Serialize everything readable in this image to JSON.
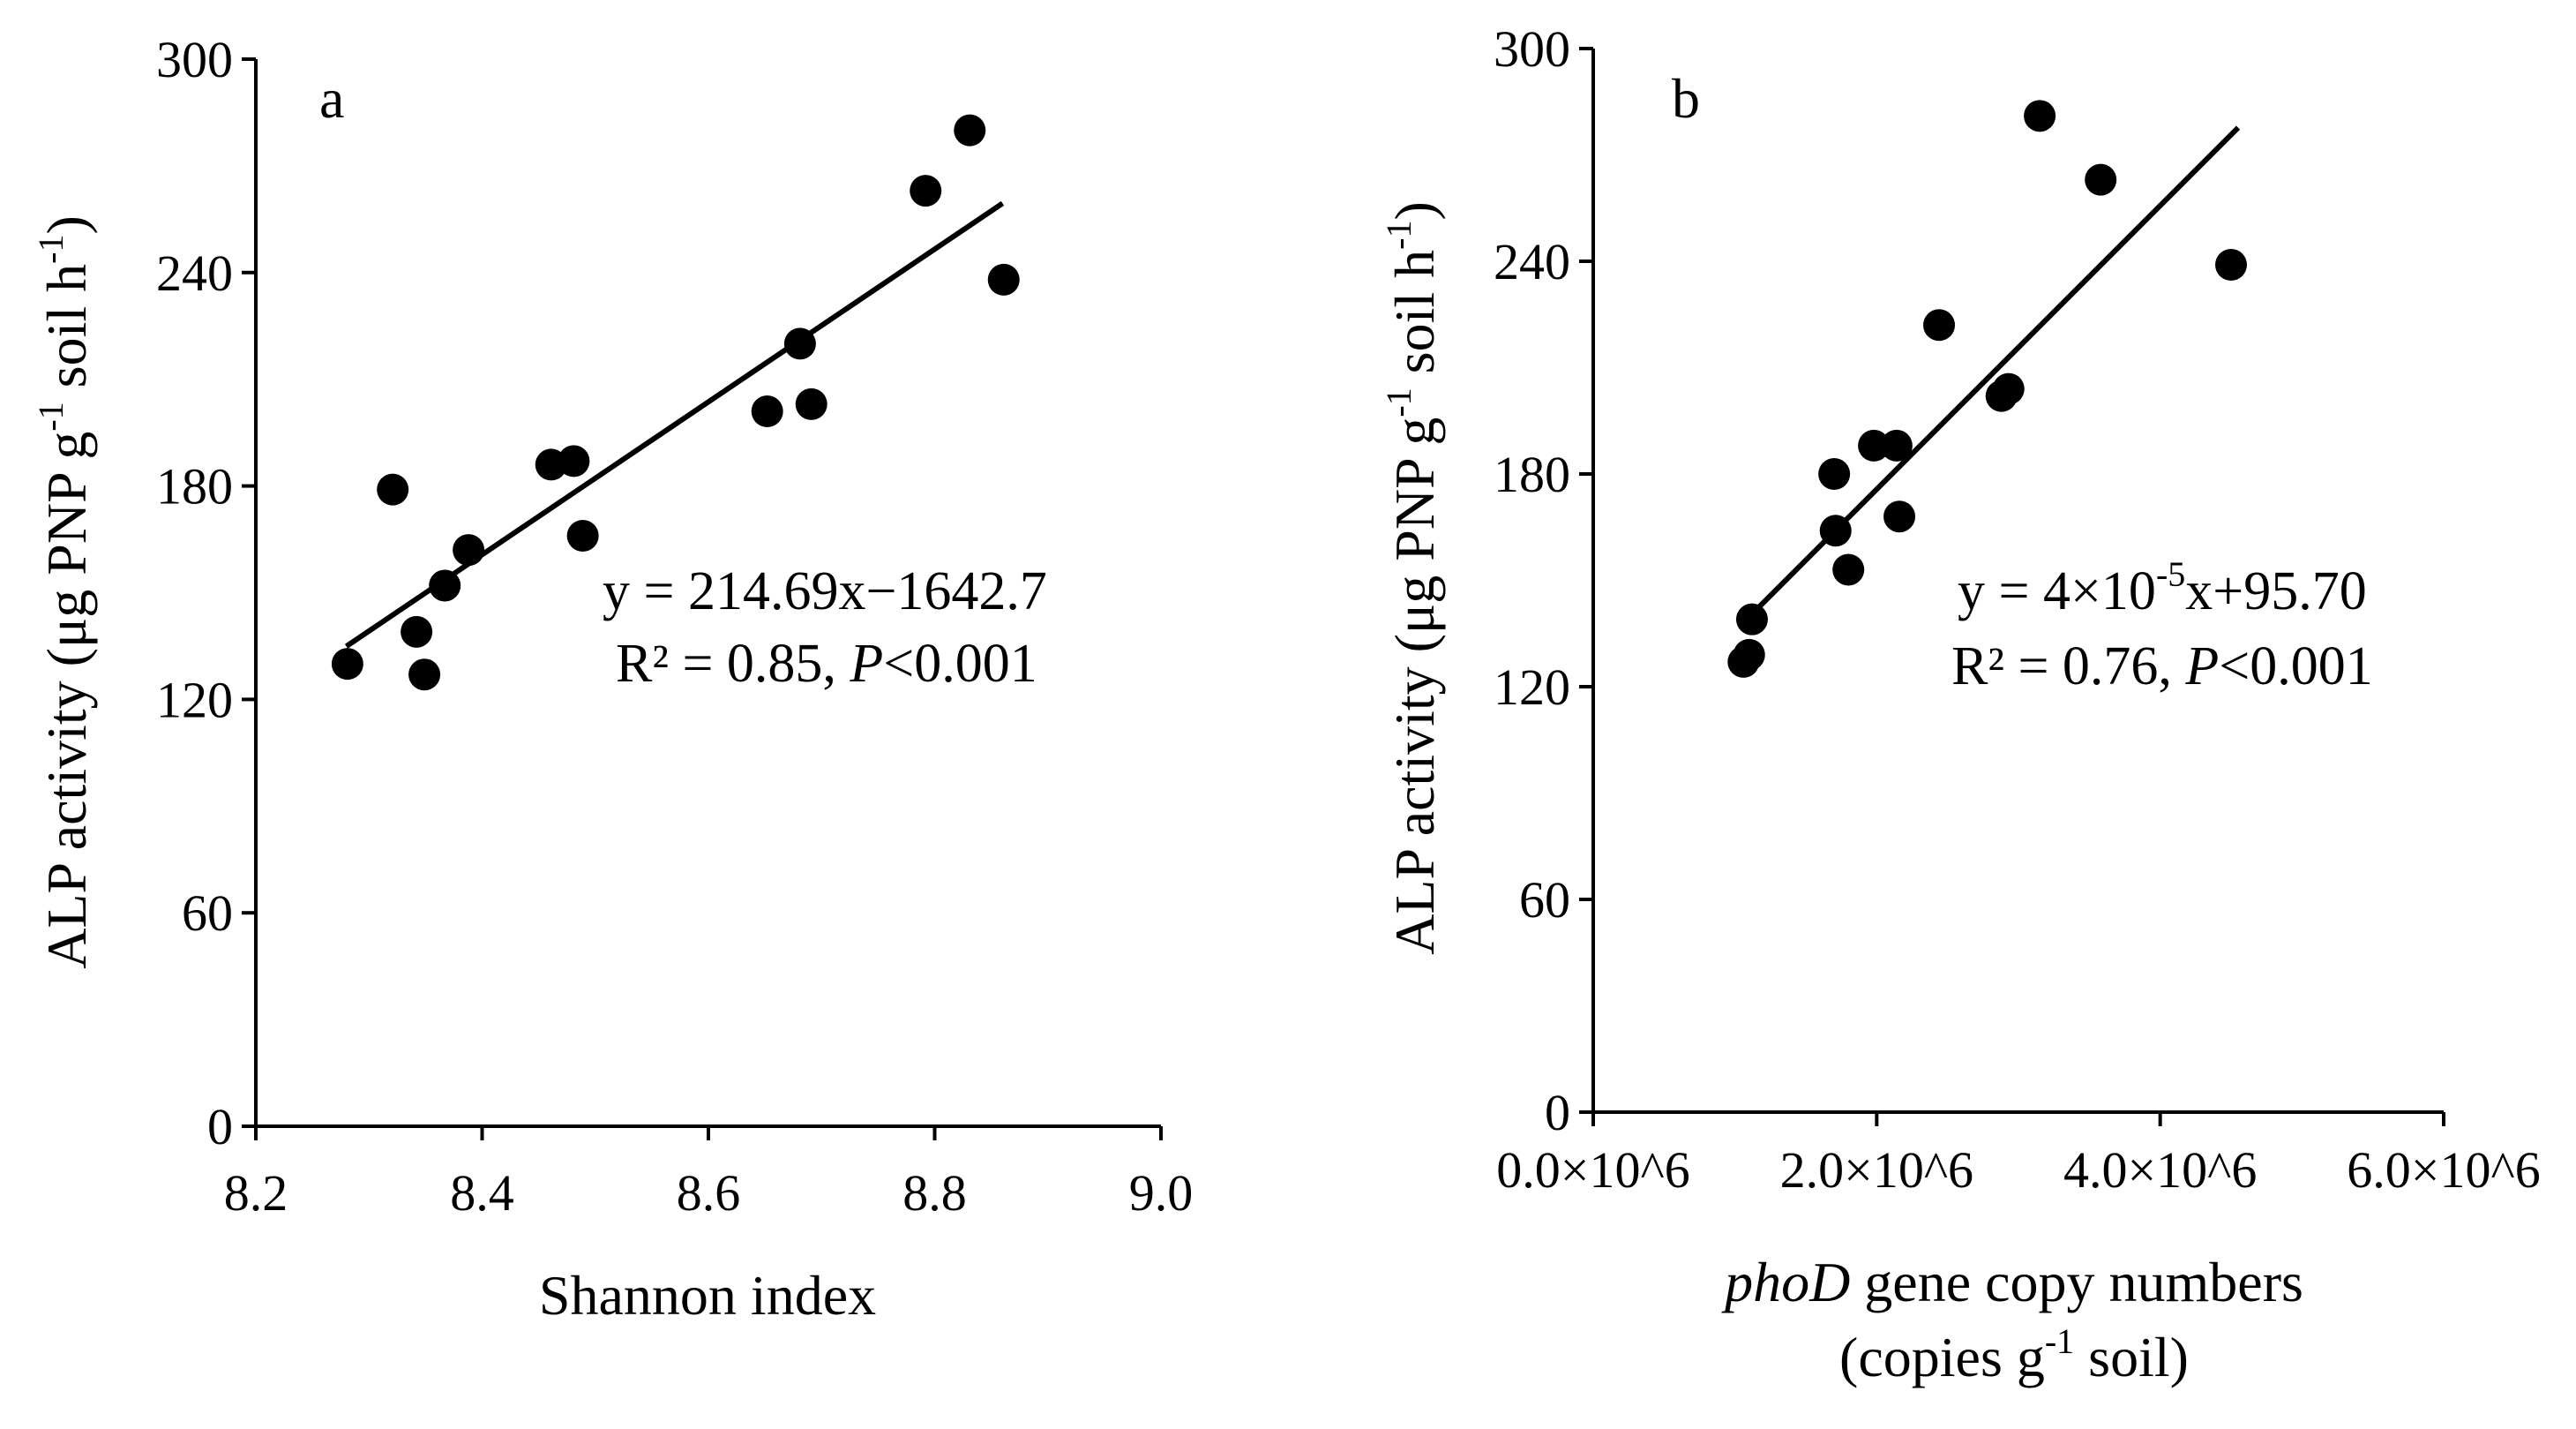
{
  "chart_data": [
    {
      "type": "scatter",
      "panel_label": "a",
      "xlabel": "Shannon index",
      "ylabel": {
        "prefix": "ALP activity (μg PNP g",
        "sup1": "-1",
        "middle": " soil h",
        "sup2": "-1",
        "suffix": ")"
      },
      "xlim": [
        8.2,
        9.0
      ],
      "ylim": [
        0,
        300
      ],
      "xticks": [
        8.2,
        8.4,
        8.6,
        8.8,
        9.0
      ],
      "xtick_labels": [
        "8.2",
        "8.4",
        "8.6",
        "8.8",
        "9.0"
      ],
      "yticks": [
        0,
        60,
        120,
        180,
        240,
        300
      ],
      "ytick_labels": [
        "0",
        "60",
        "120",
        "180",
        "240",
        "300"
      ],
      "points": [
        {
          "x": 8.281,
          "y": 130
        },
        {
          "x": 8.321,
          "y": 179
        },
        {
          "x": 8.342,
          "y": 139
        },
        {
          "x": 8.349,
          "y": 127
        },
        {
          "x": 8.367,
          "y": 152
        },
        {
          "x": 8.388,
          "y": 162
        },
        {
          "x": 8.461,
          "y": 186
        },
        {
          "x": 8.481,
          "y": 187
        },
        {
          "x": 8.489,
          "y": 166
        },
        {
          "x": 8.652,
          "y": 201
        },
        {
          "x": 8.681,
          "y": 220
        },
        {
          "x": 8.691,
          "y": 203
        },
        {
          "x": 8.792,
          "y": 263
        },
        {
          "x": 8.831,
          "y": 280
        },
        {
          "x": 8.861,
          "y": 238
        }
      ],
      "fit": {
        "slope": 214.69,
        "intercept": -1642.7,
        "x_range": [
          8.28,
          8.86
        ]
      },
      "equation": "y = 214.69x−1642.7",
      "r2_text": "R² = 0.85, ",
      "p_label": "P",
      "p_value": "<0.001"
    },
    {
      "type": "scatter",
      "panel_label": "b",
      "xlabel": {
        "italic": "phoD",
        "rest": " gene copy numbers"
      },
      "xlabel2": {
        "prefix": "(copies g",
        "sup": "-1",
        "suffix": " soil)"
      },
      "ylabel": {
        "prefix": "ALP activity (μg PNP g",
        "sup1": "-1",
        "middle": " soil h",
        "sup2": "-1",
        "suffix": ")"
      },
      "xlim": [
        0,
        6000000
      ],
      "ylim": [
        0,
        300
      ],
      "xticks": [
        0,
        2000000,
        4000000,
        6000000
      ],
      "xtick_labels": [
        "0.0×10^6",
        "2.0×10^6",
        "4.0×10^6",
        "6.0×10^6"
      ],
      "yticks": [
        0,
        60,
        120,
        180,
        240,
        300
      ],
      "ytick_labels": [
        "0",
        "60",
        "120",
        "180",
        "240",
        "300"
      ],
      "points": [
        {
          "x": 1060000,
          "y": 127
        },
        {
          "x": 1100000,
          "y": 129
        },
        {
          "x": 1120000,
          "y": 139
        },
        {
          "x": 1700000,
          "y": 180
        },
        {
          "x": 1710000,
          "y": 164
        },
        {
          "x": 1800000,
          "y": 153
        },
        {
          "x": 1980000,
          "y": 188
        },
        {
          "x": 2140000,
          "y": 188
        },
        {
          "x": 2160000,
          "y": 168
        },
        {
          "x": 2440000,
          "y": 222
        },
        {
          "x": 2880000,
          "y": 202
        },
        {
          "x": 2930000,
          "y": 204
        },
        {
          "x": 3150000,
          "y": 281
        },
        {
          "x": 3580000,
          "y": 263
        },
        {
          "x": 4500000,
          "y": 239
        }
      ],
      "fit": {
        "slope": 4e-05,
        "intercept": 95.7,
        "x_range": [
          1100000,
          4550000
        ]
      },
      "equation": {
        "prefix": "y = 4×10",
        "sup": "-5",
        "suffix": "x+95.70"
      },
      "r2_text": "R² = 0.76, ",
      "p_label": "P",
      "p_value": "<0.001"
    }
  ]
}
